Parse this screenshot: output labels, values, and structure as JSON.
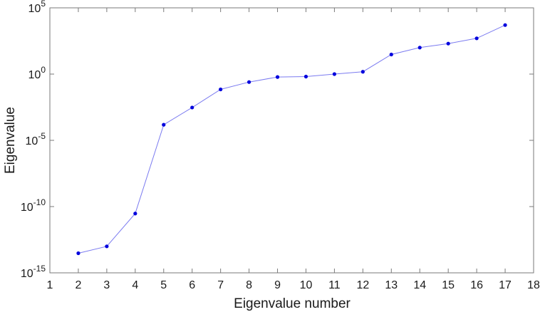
{
  "chart_data": {
    "type": "line",
    "title": "",
    "xlabel": "Eigenvalue number",
    "ylabel": "Eigenvalue",
    "xlim": [
      1,
      18
    ],
    "ylim": [
      1e-15,
      100000.0
    ],
    "y_scale": "log",
    "grid": false,
    "x_ticks": [
      1,
      2,
      3,
      4,
      5,
      6,
      7,
      8,
      9,
      10,
      11,
      12,
      13,
      14,
      15,
      16,
      17,
      18
    ],
    "y_ticks": [
      {
        "base": "10",
        "exp": "-15",
        "value": 1e-15
      },
      {
        "base": "10",
        "exp": "-10",
        "value": 1e-10
      },
      {
        "base": "10",
        "exp": "-5",
        "value": 1e-05
      },
      {
        "base": "10",
        "exp": "0",
        "value": 1
      },
      {
        "base": "10",
        "exp": "5",
        "value": 100000.0
      }
    ],
    "series": [
      {
        "color": "#7b7bf0",
        "marker_color": "#0000dd",
        "x": [
          2,
          3,
          4,
          5,
          6,
          7,
          8,
          9,
          10,
          11,
          12,
          13,
          14,
          15,
          16,
          17
        ],
        "y": [
          3e-14,
          1e-13,
          3e-11,
          0.00015,
          0.003,
          0.07,
          0.25,
          0.6,
          0.65,
          1.0,
          1.5,
          30,
          100,
          200,
          500,
          5000
        ]
      }
    ]
  }
}
